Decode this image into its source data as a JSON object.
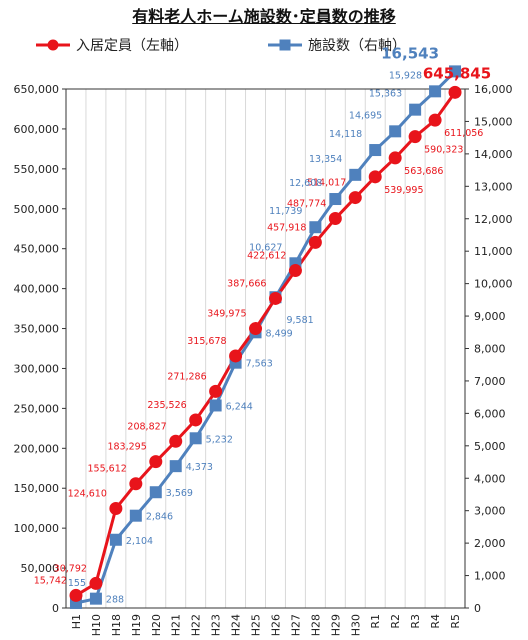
{
  "chart_data": {
    "type": "line",
    "title": "有料老人ホーム施設数･定員数の推移",
    "categories": [
      "H1",
      "H10",
      "H18",
      "H19",
      "H20",
      "H21",
      "H22",
      "H23",
      "H24",
      "H25",
      "H26",
      "H27",
      "H28",
      "H29",
      "H30",
      "R1",
      "R2",
      "R3",
      "R4",
      "R5"
    ],
    "series": [
      {
        "name": "入居定員（左軸）",
        "axis": "left",
        "color": "#e8141b",
        "marker": "circle",
        "values": [
          15742,
          30792,
          124610,
          155612,
          183295,
          208827,
          235526,
          271286,
          315678,
          349975,
          387666,
          422612,
          457918,
          487774,
          514017,
          539995,
          563686,
          590323,
          611056,
          645845
        ],
        "labels": [
          "15,742",
          "30,792",
          "124,610",
          "155,612",
          "183,295",
          "208,827",
          "235,526",
          "271,286",
          "315,678",
          "349,975",
          "387,666",
          "422,612",
          "457,918",
          "487,774",
          "514,017",
          "539,995",
          "563,686",
          "590,323",
          "611,056",
          "645,845"
        ]
      },
      {
        "name": "施設数（右軸）",
        "axis": "right",
        "color": "#4f81bd",
        "marker": "square",
        "values": [
          155,
          288,
          2104,
          2846,
          3569,
          4373,
          5232,
          6244,
          7563,
          8499,
          9581,
          10627,
          11739,
          12608,
          13354,
          14118,
          14695,
          15363,
          15928,
          16543
        ],
        "labels": [
          "155",
          "288",
          "2,104",
          "2,846",
          "3,569",
          "4,373",
          "5,232",
          "6,244",
          "7,563",
          "8,499",
          "9,581",
          "10,627",
          "11,739",
          "12,608",
          "13,354",
          "14,118",
          "14,695",
          "15,363",
          "15,928",
          "16,543"
        ]
      }
    ],
    "left_axis": {
      "ylim": [
        0,
        650000
      ],
      "ticks": [
        0,
        50000,
        100000,
        150000,
        200000,
        250000,
        300000,
        350000,
        400000,
        450000,
        500000,
        550000,
        600000,
        650000
      ],
      "tick_labels": [
        "0",
        "50,000",
        "100,000",
        "150,000",
        "200,000",
        "250,000",
        "300,000",
        "350,000",
        "400,000",
        "450,000",
        "500,000",
        "550,000",
        "600,000",
        "650,000"
      ]
    },
    "right_axis": {
      "ylim": [
        0,
        16000
      ],
      "ticks": [
        0,
        1000,
        2000,
        3000,
        4000,
        5000,
        6000,
        7000,
        8000,
        9000,
        10000,
        11000,
        12000,
        13000,
        14000,
        15000,
        16000
      ],
      "tick_labels": [
        "0",
        "1,000",
        "2,000",
        "3,000",
        "4,000",
        "5,000",
        "6,000",
        "7,000",
        "8,000",
        "9,000",
        "10,000",
        "11,000",
        "12,000",
        "13,000",
        "14,000",
        "15,000",
        "16,000"
      ]
    },
    "grid": "vertical",
    "legend": "top"
  }
}
